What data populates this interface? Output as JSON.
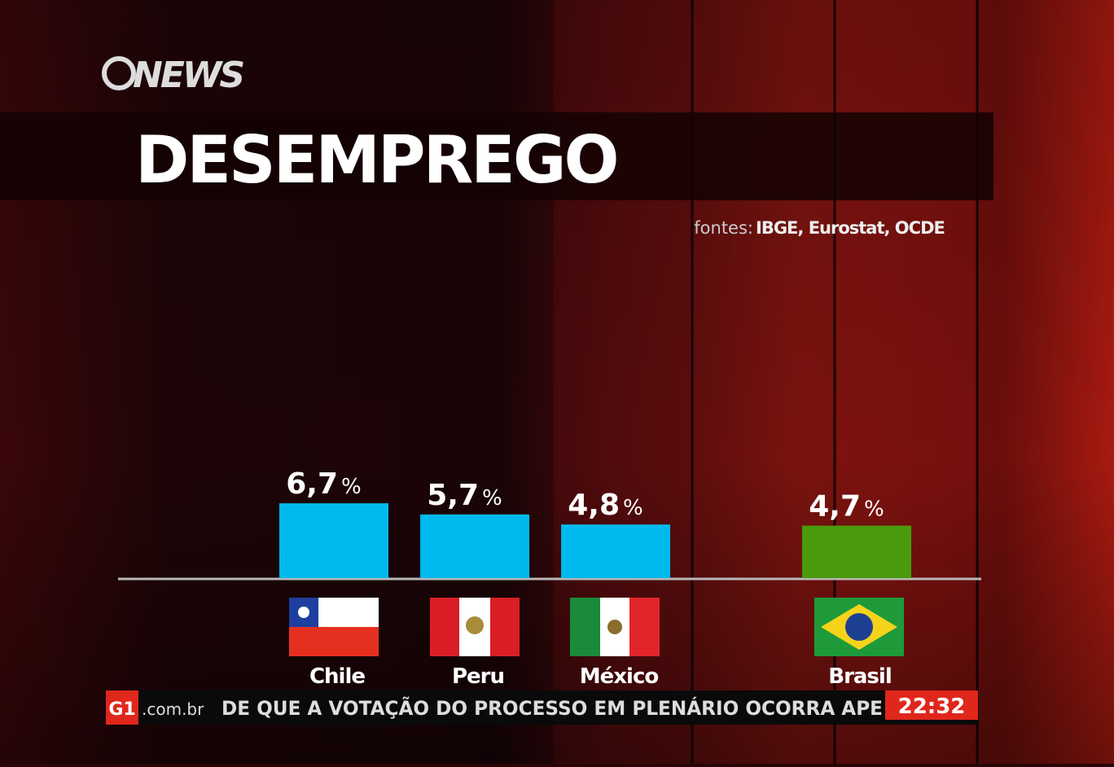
{
  "header": {
    "logo": "NEWS",
    "title": "DESEMPREGO",
    "source_prefix": "fontes:",
    "source": "IBGE, Eurostat, OCDE"
  },
  "chart_data": {
    "type": "bar",
    "categories": [
      "Chile",
      "Peru",
      "México",
      "Brasil"
    ],
    "values": [
      6.7,
      5.7,
      4.8,
      4.7
    ],
    "value_labels": [
      "6,7",
      "5,7",
      "4,8",
      "4,7"
    ],
    "unit_label": "%",
    "colors": [
      "#00b9ec",
      "#00b9ec",
      "#00b9ec",
      "#4b9a0c"
    ],
    "ylim": [
      0,
      7
    ]
  },
  "ticker": {
    "brand": "G1",
    "domain": ".com.br",
    "text": "DE QUE A VOTAÇÃO DO PROCESSO EM PLENÁRIO OCORRA APE",
    "time": "22:32"
  }
}
